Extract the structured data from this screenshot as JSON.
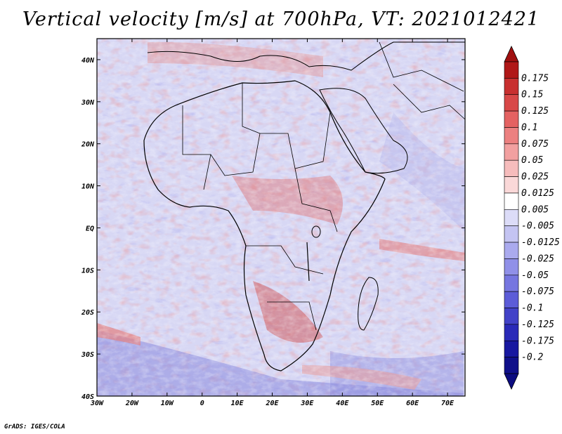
{
  "title": "Vertical velocity [m/s] at 700hPa, VT: 2021012421",
  "credit": "GrADS: IGES/COLA",
  "map": {
    "lon_range": [
      -30,
      75
    ],
    "lat_range": [
      -40,
      45
    ],
    "lat_ticks": [
      "40N",
      "30N",
      "20N",
      "10N",
      "EQ",
      "10S",
      "20S",
      "30S",
      "40S"
    ],
    "lon_ticks": [
      "30W",
      "20W",
      "10W",
      "0",
      "10E",
      "20E",
      "30E",
      "40E",
      "50E",
      "60E",
      "70E"
    ]
  },
  "colorbar": {
    "levels": [
      "0.175",
      "0.15",
      "0.125",
      "0.1",
      "0.075",
      "0.05",
      "0.025",
      "0.0125",
      "0.005",
      "-0.005",
      "-0.0125",
      "-0.025",
      "-0.05",
      "-0.075",
      "-0.1",
      "-0.125",
      "-0.175",
      "-0.2"
    ],
    "colors": [
      "#b01818",
      "#c83030",
      "#d84848",
      "#e46262",
      "#ec8080",
      "#f2a0a0",
      "#f6bcbc",
      "#fad8d8",
      "#ffffff",
      "#dcdcf8",
      "#c4c4f2",
      "#aaaaee",
      "#9090e8",
      "#7676e0",
      "#5c5cd8",
      "#4242c8",
      "#2a2ab8",
      "#1818a0",
      "#10108a"
    ],
    "top_arrow_color": "#a01010",
    "bottom_arrow_color": "#0c0c80"
  }
}
